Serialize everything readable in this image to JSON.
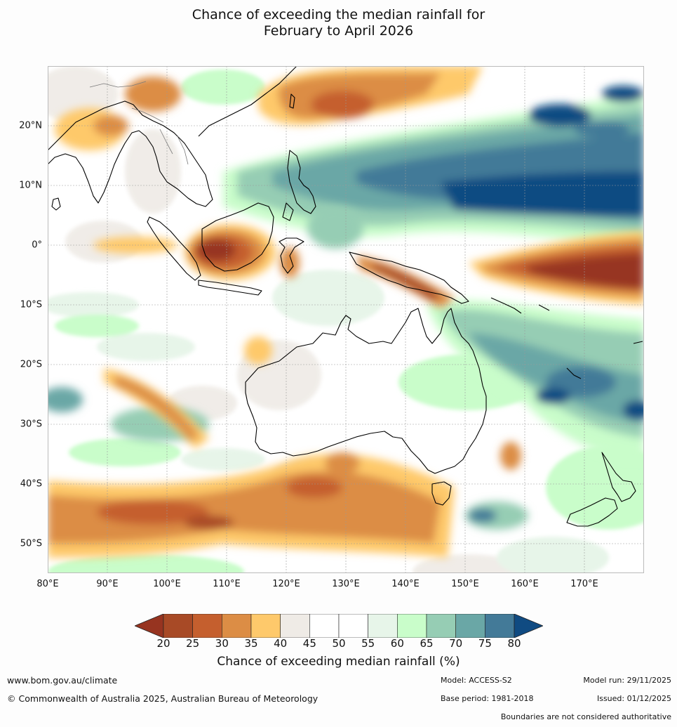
{
  "title": {
    "line1": "Chance of exceeding the median rainfall for",
    "line2": "February to April 2026"
  },
  "map": {
    "lat_range": [
      -55,
      30
    ],
    "lon_range": [
      80,
      180
    ],
    "lat_labels": [
      {
        "lat": 20,
        "text": "20°N"
      },
      {
        "lat": 10,
        "text": "10°N"
      },
      {
        "lat": 0,
        "text": "0°"
      },
      {
        "lat": -10,
        "text": "10°S"
      },
      {
        "lat": -20,
        "text": "20°S"
      },
      {
        "lat": -30,
        "text": "30°S"
      },
      {
        "lat": -40,
        "text": "40°S"
      },
      {
        "lat": -50,
        "text": "50°S"
      }
    ],
    "lon_labels": [
      {
        "lon": 80,
        "text": "80°E"
      },
      {
        "lon": 90,
        "text": "90°E"
      },
      {
        "lon": 100,
        "text": "100°E"
      },
      {
        "lon": 110,
        "text": "110°E"
      },
      {
        "lon": 120,
        "text": "120°E"
      },
      {
        "lon": 130,
        "text": "130°E"
      },
      {
        "lon": 140,
        "text": "140°E"
      },
      {
        "lon": 150,
        "text": "150°E"
      },
      {
        "lon": 160,
        "text": "160°E"
      },
      {
        "lon": 170,
        "text": "170°E"
      }
    ],
    "regions": [
      {
        "name": "dry-equatorial-pacific",
        "class": 20,
        "lat": -3,
        "lon": 173
      },
      {
        "name": "dry-borneo-west",
        "class": 25,
        "lat": -1,
        "lon": 113
      },
      {
        "name": "dry-new-guinea",
        "class": 25,
        "lat": -4,
        "lon": 140
      },
      {
        "name": "dry-taiwan-north",
        "class": 30,
        "lat": 24,
        "lon": 131
      },
      {
        "name": "dry-southern-ocean",
        "class": 30,
        "lat": -43,
        "lon": 108
      },
      {
        "name": "wet-west-pacific-band",
        "class": 80,
        "lat": 10,
        "lon": 168
      },
      {
        "name": "wet-north-pacific",
        "class": 75,
        "lat": 20,
        "lon": 160
      },
      {
        "name": "wet-philippines",
        "class": 70,
        "lat": 11,
        "lon": 127
      },
      {
        "name": "wet-coral-sea",
        "class": 70,
        "lat": -18,
        "lon": 155
      },
      {
        "name": "wet-tasman",
        "class": 65,
        "lat": -30,
        "lon": 165
      },
      {
        "name": "near-normal-australia",
        "class": 50,
        "lat": -25,
        "lon": 134
      }
    ]
  },
  "colorbar": {
    "colors": [
      "#973420",
      "#a84a26",
      "#c55f2e",
      "#dc8d45",
      "#fec96b",
      "#efebe6",
      "#ffffff",
      "#ffffff",
      "#e7f5e9",
      "#c9fdca",
      "#96cdb4",
      "#6aa7a6",
      "#437a98",
      "#104b82"
    ],
    "ticks": [
      "20",
      "25",
      "30",
      "35",
      "40",
      "45",
      "50",
      "55",
      "60",
      "65",
      "70",
      "75",
      "80"
    ],
    "label": "Chance of exceeding median rainfall (%)"
  },
  "footer": {
    "url": "www.bom.gov.au/climate",
    "copyright": "© Commonwealth of Australia 2025, Australian Bureau of Meteorology",
    "model": "Model: ACCESS-S2",
    "base_period": "Base period: 1981-2018",
    "model_run": "Model run: 29/11/2025",
    "issued": "Issued: 01/12/2025",
    "disclaimer": "Boundaries are not considered authoritative"
  }
}
